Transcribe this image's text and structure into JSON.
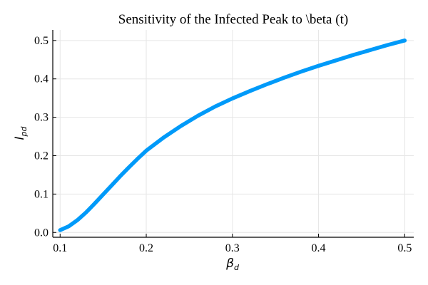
{
  "chart_data": {
    "type": "line",
    "title": "Sensitivity of the Infected Peak to  \\beta (t)",
    "xlabel": {
      "main": "β",
      "sub": "d"
    },
    "ylabel": {
      "main": "I",
      "sub": "pd"
    },
    "xlim": [
      0.0915,
      0.5105
    ],
    "ylim": [
      -0.0125,
      0.5275
    ],
    "xticks": [
      0.1,
      0.2,
      0.3,
      0.4,
      0.5
    ],
    "xtick_labels": [
      "0.1",
      "0.2",
      "0.3",
      "0.4",
      "0.5"
    ],
    "yticks": [
      0.0,
      0.1,
      0.2,
      0.3,
      0.4,
      0.5
    ],
    "ytick_labels": [
      "0.0",
      "0.1",
      "0.2",
      "0.3",
      "0.4",
      "0.5"
    ],
    "grid": true,
    "legend": "none",
    "series": [
      {
        "color": "#009af9",
        "x": [
          0.1,
          0.11,
          0.12,
          0.13,
          0.14,
          0.15,
          0.16,
          0.17,
          0.18,
          0.19,
          0.2,
          0.22,
          0.24,
          0.26,
          0.28,
          0.3,
          0.32,
          0.34,
          0.36,
          0.38,
          0.4,
          0.42,
          0.44,
          0.46,
          0.48,
          0.5
        ],
        "y": [
          0.006,
          0.016,
          0.032,
          0.052,
          0.075,
          0.099,
          0.123,
          0.147,
          0.17,
          0.192,
          0.213,
          0.247,
          0.277,
          0.304,
          0.328,
          0.349,
          0.368,
          0.386,
          0.403,
          0.419,
          0.434,
          0.448,
          0.462,
          0.475,
          0.488,
          0.5
        ]
      }
    ]
  }
}
